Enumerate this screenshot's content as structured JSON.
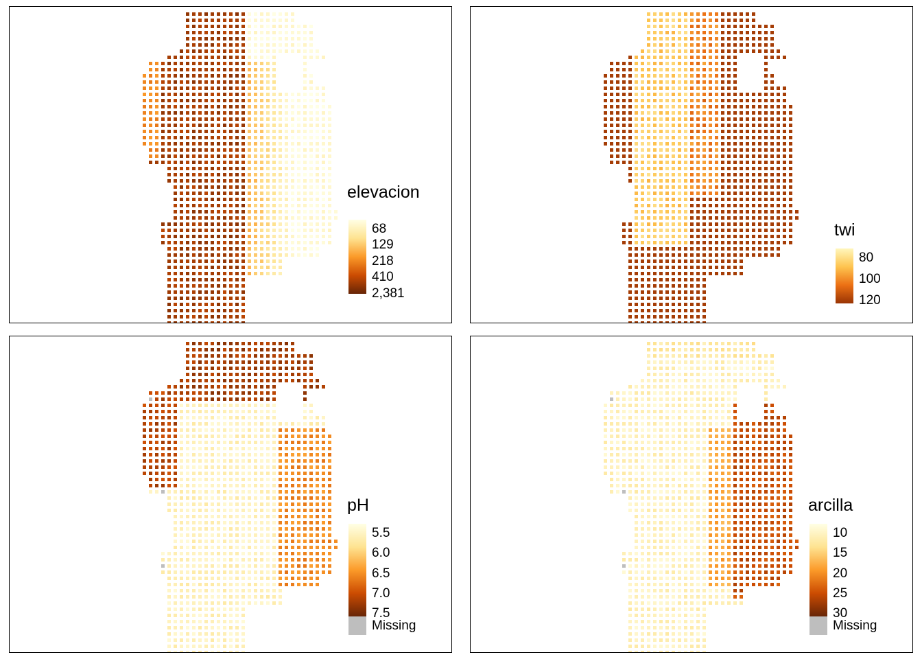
{
  "maps": [
    {
      "id": "elevacion",
      "legend": {
        "title": "elevacion",
        "labels": [
          "68",
          "129",
          "218",
          "410",
          "2,381"
        ],
        "missing_label": ""
      },
      "pattern": "elevation",
      "colors": [
        "#FFFFE5",
        "#FEE391",
        "#FB9A29",
        "#CC4C02",
        "#662506"
      ]
    },
    {
      "id": "twi",
      "legend": {
        "title": "twi",
        "labels": [
          "80",
          "100",
          "120"
        ],
        "missing_label": ""
      },
      "pattern": "twi",
      "colors": [
        "#FFF7BC",
        "#FEC44F",
        "#EC7014",
        "#993404"
      ]
    },
    {
      "id": "ph",
      "legend": {
        "title": "pH",
        "labels": [
          "5.5",
          "6.0",
          "6.5",
          "7.0",
          "7.5"
        ],
        "missing_label": "Missing"
      },
      "pattern": "ph",
      "colors": [
        "#FFFFE5",
        "#FEE391",
        "#FB9A29",
        "#CC4C02",
        "#662506"
      ]
    },
    {
      "id": "arcilla",
      "legend": {
        "title": "arcilla",
        "labels": [
          "10",
          "15",
          "20",
          "25",
          "30"
        ],
        "missing_label": "Missing"
      },
      "pattern": "clay",
      "colors": [
        "#FFFFE5",
        "#FEE391",
        "#FB9A29",
        "#CC4C02",
        "#662506"
      ]
    }
  ]
}
